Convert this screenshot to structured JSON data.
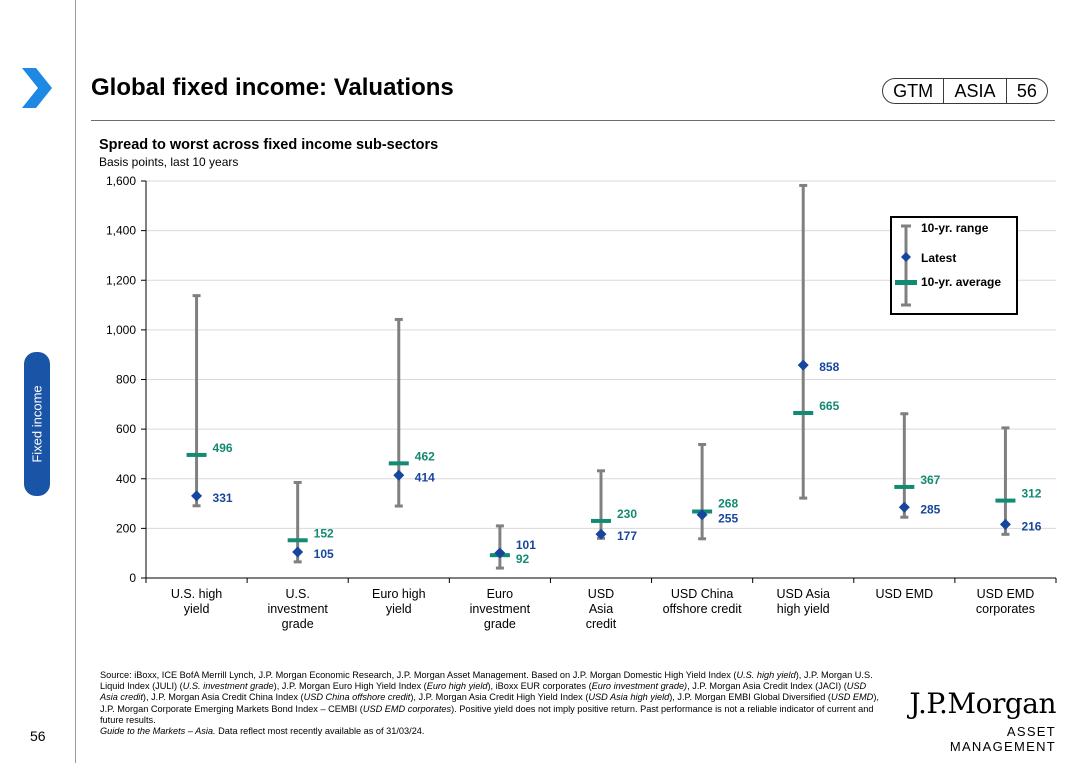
{
  "header": {
    "title": "Global fixed income: Valuations",
    "badge": [
      "GTM",
      "ASIA",
      "56"
    ],
    "side_tab": "Fixed income"
  },
  "chart_data": {
    "type": "range",
    "title": "Spread to worst across fixed income sub-sectors",
    "subtitle": "Basis points, last 10 years",
    "ylim": [
      0,
      1600
    ],
    "yticks": [
      0,
      200,
      400,
      600,
      800,
      1000,
      1200,
      1400,
      1600
    ],
    "ytick_labels": [
      "0",
      "200",
      "400",
      "600",
      "800",
      "1,000",
      "1,200",
      "1,400",
      "1,600"
    ],
    "categories": [
      [
        "U.S. high",
        "yield"
      ],
      [
        "U.S.",
        "investment",
        "grade"
      ],
      [
        "Euro high",
        "yield"
      ],
      [
        "Euro",
        "investment",
        "grade"
      ],
      [
        "USD",
        "Asia",
        "credit"
      ],
      [
        "USD China",
        "offshore credit"
      ],
      [
        "USD Asia",
        "high yield"
      ],
      [
        "USD EMD"
      ],
      [
        "USD EMD",
        "corporates"
      ]
    ],
    "series": [
      {
        "name": "10-yr. range",
        "min": [
          null,
          null,
          290,
          40,
          160,
          158,
          322,
          null,
          null
        ],
        "max": [
          1138,
          385,
          1042,
          210,
          432,
          538,
          1582,
          662,
          605
        ]
      },
      {
        "name": "Latest",
        "values": [
          331,
          105,
          414,
          101,
          177,
          255,
          858,
          285,
          216
        ]
      },
      {
        "name": "10-yr. average",
        "values": [
          496,
          152,
          462,
          92,
          230,
          268,
          665,
          367,
          312
        ]
      }
    ],
    "range_floor_missing_note": "",
    "legend": [
      "10-yr. range",
      "Latest",
      "10-yr. average"
    ],
    "legend_position": "top-right",
    "colors": {
      "range": "#808080",
      "latest": "#17469e",
      "average": "#138a72"
    }
  },
  "footer": {
    "source_line1": "Source: iBoxx, ICE BofA Merrill Lynch, J.P. Morgan Economic Research, J.P. Morgan Asset Management. Based on J.P. Morgan Domestic High Yield Index (",
    "source_html_parts": [
      {
        "t": "Source: iBoxx, ICE BofA Merrill Lynch, J.P. Morgan Economic Research, J.P. Morgan Asset Management. Based on J.P. Morgan Domestic High Yield Index (",
        "i": false
      },
      {
        "t": "U.S. high yield",
        "i": true
      },
      {
        "t": "), J.P. Morgan U.S. Liquid Index (JULI) (",
        "i": false
      },
      {
        "t": "U.S. investment grade",
        "i": true
      },
      {
        "t": "), J.P. Morgan Euro High Yield Index (",
        "i": false
      },
      {
        "t": "Euro high yield",
        "i": true
      },
      {
        "t": "), iBoxx EUR corporates (",
        "i": false
      },
      {
        "t": "Euro investment grade)",
        "i": true
      },
      {
        "t": ", J.P. Morgan Asia Credit Index (JACI) (",
        "i": false
      },
      {
        "t": "USD Asia credit",
        "i": true
      },
      {
        "t": "), J.P. Morgan Asia Credit China Index (",
        "i": false
      },
      {
        "t": "USD China offshore credit",
        "i": true
      },
      {
        "t": "), J.P. Morgan Asia Credit High Yield Index (",
        "i": false
      },
      {
        "t": "USD Asia high yield",
        "i": true
      },
      {
        "t": "), J.P. Morgan EMBI Global Diversified (",
        "i": false
      },
      {
        "t": "USD EMD",
        "i": true
      },
      {
        "t": "), J.P. Morgan Corporate Emerging Markets Bond Index – CEMBI (",
        "i": false
      },
      {
        "t": "USD EMD corporates",
        "i": true
      },
      {
        "t": "). Positive yield does not imply positive return. Past performance is not a reliable indicator of current and future results.",
        "i": false
      }
    ],
    "guide_italic": "Guide to the Markets – Asia.",
    "guide_rest": " Data reflect most recently available as of 31/03/24.",
    "page_number": "56",
    "brand_name": "J.P.Morgan",
    "brand_sub": "ASSET MANAGEMENT"
  }
}
